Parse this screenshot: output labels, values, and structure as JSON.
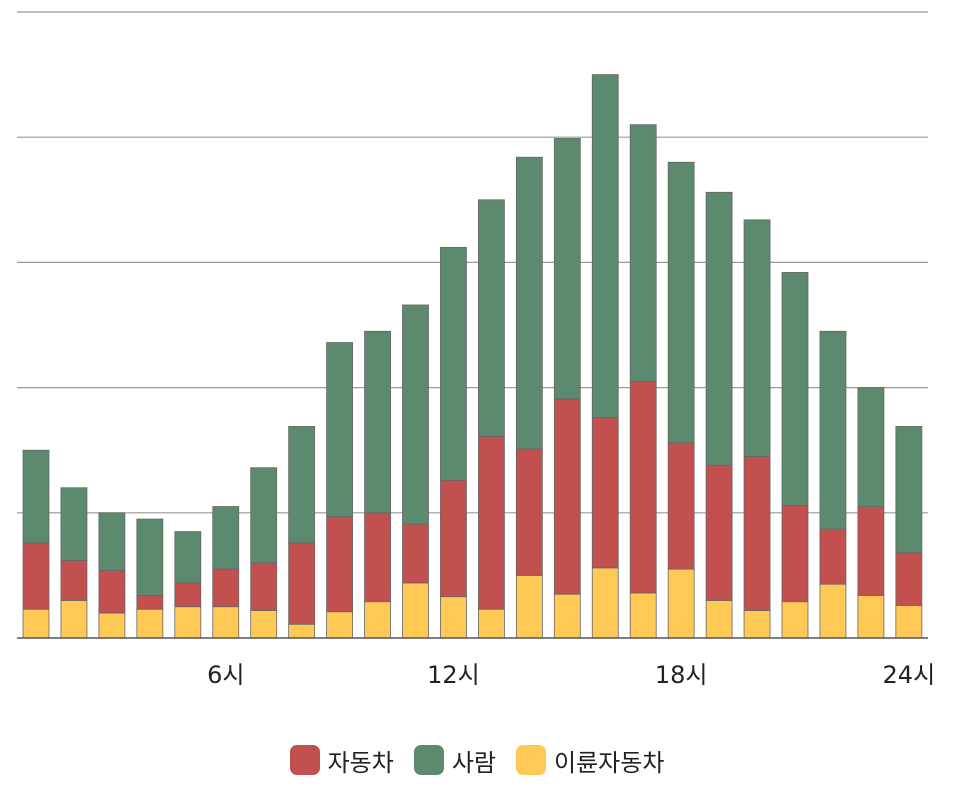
{
  "chart_data": {
    "type": "bar",
    "stacked": true,
    "x": [
      1,
      2,
      3,
      4,
      5,
      6,
      7,
      8,
      9,
      10,
      11,
      12,
      13,
      14,
      15,
      16,
      17,
      18,
      19,
      20,
      21,
      22,
      23,
      24
    ],
    "xticks": [
      {
        "x": 6,
        "label": "6시"
      },
      {
        "x": 12,
        "label": "12시"
      },
      {
        "x": 18,
        "label": "18시"
      },
      {
        "x": 24,
        "label": "24시"
      }
    ],
    "ylim": [
      0,
      50
    ],
    "ygrid": [
      10,
      20,
      30,
      40,
      50
    ],
    "grid": true,
    "legend_position": "bottom",
    "series": [
      {
        "name": "이륜자동차",
        "color": "#FFC955",
        "values": [
          2.3,
          3.0,
          2.0,
          2.3,
          2.5,
          2.5,
          2.2,
          1.1,
          2.1,
          2.9,
          4.4,
          3.3,
          2.3,
          5.0,
          3.5,
          5.6,
          3.6,
          5.5,
          3.0,
          2.2,
          2.9,
          4.3,
          3.4,
          2.6
        ]
      },
      {
        "name": "자동차",
        "color": "#C1504E",
        "values": [
          5.3,
          3.2,
          3.4,
          1.1,
          1.9,
          3.0,
          3.8,
          6.5,
          7.6,
          7.1,
          4.7,
          9.3,
          13.8,
          10.1,
          15.6,
          12.0,
          16.9,
          10.1,
          10.8,
          12.3,
          7.7,
          4.4,
          7.1,
          4.2
        ]
      },
      {
        "name": "사람",
        "color": "#5C8A6E",
        "values": [
          7.4,
          5.8,
          4.6,
          6.1,
          4.1,
          5.0,
          7.6,
          9.3,
          13.9,
          14.5,
          17.5,
          18.6,
          18.9,
          23.3,
          20.8,
          27.4,
          20.5,
          22.4,
          21.8,
          18.9,
          18.6,
          15.8,
          9.5,
          10.1
        ]
      }
    ],
    "legend_order": [
      "자동차",
      "사람",
      "이륜자동차"
    ]
  }
}
